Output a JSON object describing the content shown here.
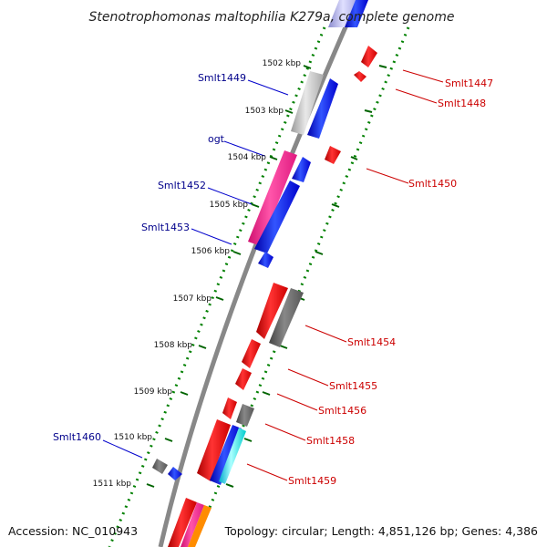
{
  "header": {
    "title": "Stenotrophomonas maltophilia K279a, complete genome"
  },
  "footer": {
    "accession": "Accession: NC_010943",
    "topology": "Topology: circular; Length: 4,851,126 bp; Genes: 4,386"
  },
  "scale": {
    "ticks": [
      {
        "label": "1502 kbp"
      },
      {
        "label": "1503 kbp"
      },
      {
        "label": "1504 kbp"
      },
      {
        "label": "1505 kbp"
      },
      {
        "label": "1506 kbp"
      },
      {
        "label": "1507 kbp"
      },
      {
        "label": "1508 kbp"
      },
      {
        "label": "1509 kbp"
      },
      {
        "label": "1510 kbp"
      },
      {
        "label": "1511 kbp"
      }
    ]
  },
  "genes": {
    "reverse_strand_labels": [
      {
        "name": "Smlt1449",
        "color": "#00008b"
      },
      {
        "name": "ogt",
        "color": "#00008b"
      },
      {
        "name": "Smlt1452",
        "color": "#00008b"
      },
      {
        "name": "Smlt1453",
        "color": "#00008b"
      },
      {
        "name": "Smlt1460",
        "color": "#00008b"
      }
    ],
    "forward_strand_labels": [
      {
        "name": "Smlt1447",
        "color": "#cc0000"
      },
      {
        "name": "Smlt1448",
        "color": "#cc0000"
      },
      {
        "name": "Smlt1450",
        "color": "#cc0000"
      },
      {
        "name": "Smlt1454",
        "color": "#cc0000"
      },
      {
        "name": "Smlt1455",
        "color": "#cc0000"
      },
      {
        "name": "Smlt1456",
        "color": "#cc0000"
      },
      {
        "name": "Smlt1458",
        "color": "#cc0000"
      },
      {
        "name": "Smlt1459",
        "color": "#cc0000"
      }
    ]
  },
  "colors": {
    "forward_gene": "#ff0000",
    "reverse_gene": "#0000ff",
    "gc_skew_dots": "#008000",
    "backbone": "#888888",
    "pseudo_gene": "#666666",
    "rna_gene": "#ff1493",
    "feature_cyan": "#00ffff"
  }
}
